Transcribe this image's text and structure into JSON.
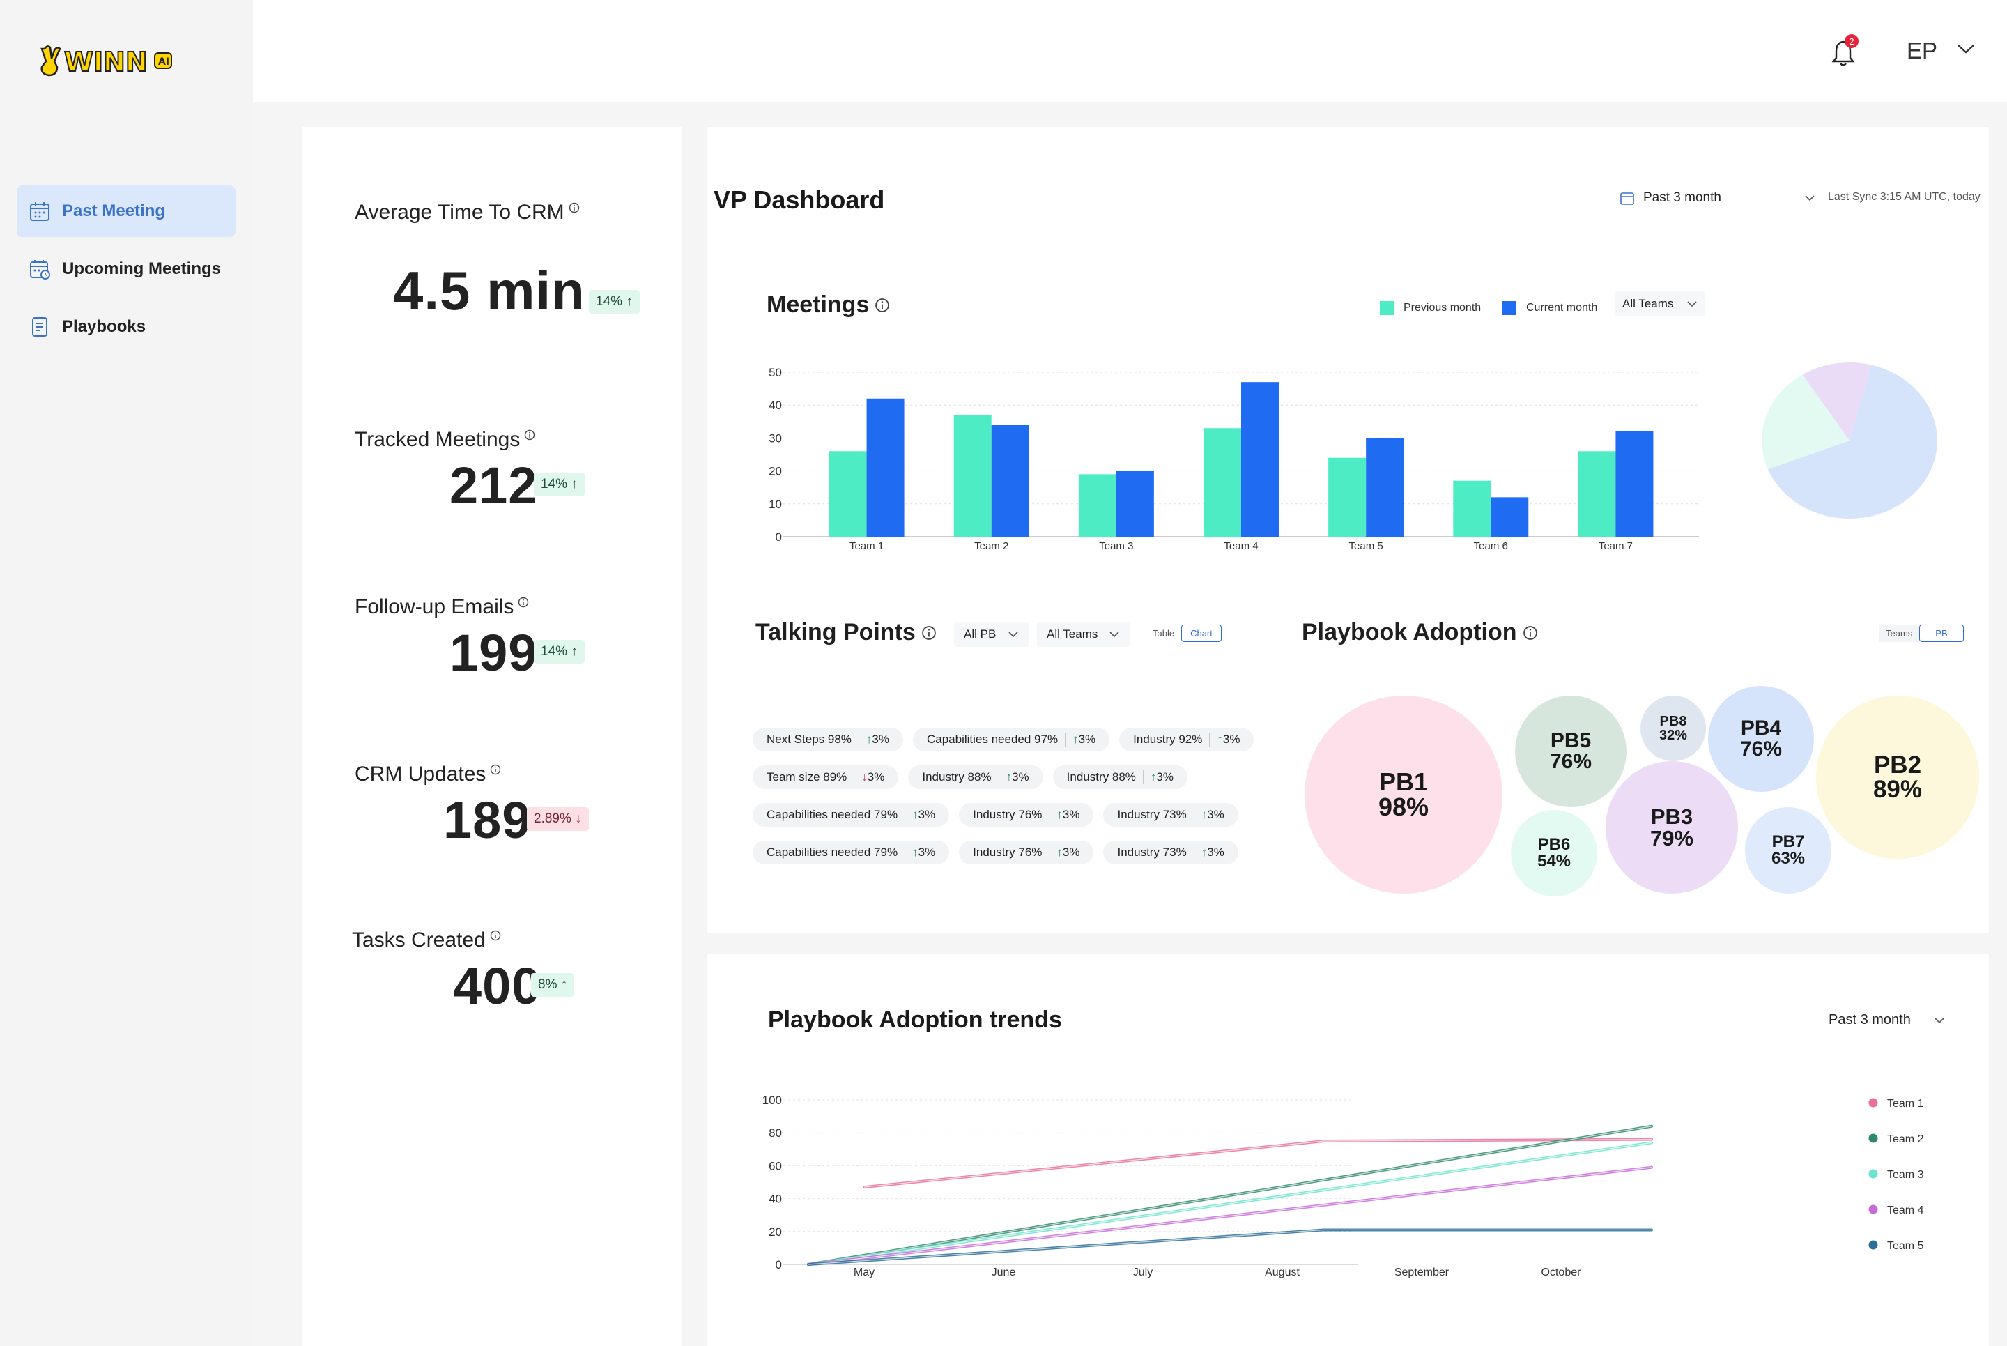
{
  "app": {
    "logo_text": "WINN",
    "logo_badge": "AI"
  },
  "sidebar": {
    "items": [
      {
        "label": "Past Meeting",
        "icon": "calendar-icon",
        "active": true
      },
      {
        "label": "Upcoming Meetings",
        "icon": "calendar-clock-icon",
        "active": false
      },
      {
        "label": "Playbooks",
        "icon": "document-icon",
        "active": false
      }
    ]
  },
  "header": {
    "notification_count": "2",
    "user_initials": "EP"
  },
  "stats": [
    {
      "label": "Average Time To CRM",
      "value": "4.5 min",
      "delta": "14%",
      "direction": "up"
    },
    {
      "label": "Tracked Meetings",
      "value": "212",
      "delta": "14%",
      "direction": "up"
    },
    {
      "label": "Follow-up Emails",
      "value": "199",
      "delta": "14%",
      "direction": "up"
    },
    {
      "label": "CRM Updates",
      "value": "189",
      "delta": "2.89%",
      "direction": "down"
    },
    {
      "label": "Tasks Created",
      "value": "400",
      "delta": "8%",
      "direction": "up"
    }
  ],
  "dashboard": {
    "title": "VP Dashboard",
    "period": "Past 3 month",
    "last_sync": "Last Sync 3:15 AM UTC, today"
  },
  "meetings": {
    "title": "Meetings",
    "team_filter": "All Teams",
    "colors": {
      "previous": "#4eecc5",
      "current": "#1f6bf2"
    },
    "chart_data": {
      "type": "bar",
      "categories": [
        "Team 1",
        "Team 2",
        "Team 3",
        "Team 4",
        "Team 5",
        "Team 6",
        "Team 7"
      ],
      "series": [
        {
          "name": "Previous month",
          "values": [
            26,
            37,
            19,
            33,
            24,
            17,
            26
          ]
        },
        {
          "name": "Current month",
          "values": [
            42,
            34,
            20,
            47,
            30,
            12,
            32
          ]
        }
      ],
      "yticks": [
        0,
        10,
        20,
        30,
        40,
        50
      ],
      "ylim": [
        0,
        50
      ]
    },
    "pie": {
      "chart_data": {
        "type": "pie",
        "values": [
          65,
          22,
          13
        ],
        "colors": [
          "#d6e4fb",
          "#e3faf2",
          "#eadcf7"
        ]
      }
    }
  },
  "talking_points": {
    "title": "Talking Points",
    "pb_filter": "All PB",
    "team_filter": "All Teams",
    "toggle": {
      "table": "Table",
      "chart": "Chart"
    },
    "rows": [
      [
        {
          "text": "Next Steps 98%",
          "delta": "3%",
          "direction": "up"
        },
        {
          "text": "Capabilities needed 97%",
          "delta": "3%",
          "direction": "up"
        },
        {
          "text": "Industry 92%",
          "delta": "3%",
          "direction": "up"
        }
      ],
      [
        {
          "text": "Team size 89%",
          "delta": "3%",
          "direction": "down"
        },
        {
          "text": "Industry 88%",
          "delta": "3%",
          "direction": "up"
        },
        {
          "text": "Industry 88%",
          "delta": "3%",
          "direction": "up"
        }
      ],
      [
        {
          "text": "Capabilities needed 79%",
          "delta": "3%",
          "direction": "up"
        },
        {
          "text": "Industry 76%",
          "delta": "3%",
          "direction": "up"
        },
        {
          "text": "Industry 73%",
          "delta": "3%",
          "direction": "up"
        }
      ],
      [
        {
          "text": "Capabilities needed 79%",
          "delta": "3%",
          "direction": "up"
        },
        {
          "text": "Industry 76%",
          "delta": "3%",
          "direction": "up"
        },
        {
          "text": "Industry 73%",
          "delta": "3%",
          "direction": "up"
        }
      ]
    ]
  },
  "playbook_adoption": {
    "title": "Playbook Adoption",
    "toggle": {
      "teams": "Teams",
      "pb": "PB"
    },
    "bubbles": [
      {
        "name": "PB1",
        "value": "98%",
        "color": "#fde0ea"
      },
      {
        "name": "PB5",
        "value": "76%",
        "color": "#d6e6dd"
      },
      {
        "name": "PB8",
        "value": "32%",
        "color": "#dfe6ef"
      },
      {
        "name": "PB4",
        "value": "76%",
        "color": "#d6e4fb"
      },
      {
        "name": "PB2",
        "value": "89%",
        "color": "#fdf7db"
      },
      {
        "name": "PB3",
        "value": "79%",
        "color": "#ecdcf6"
      },
      {
        "name": "PB6",
        "value": "54%",
        "color": "#e2faf1"
      },
      {
        "name": "PB7",
        "value": "63%",
        "color": "#dfebfc"
      }
    ]
  },
  "trends": {
    "title": "Playbook Adoption trends",
    "period": "Past 3 month",
    "chart_data": {
      "type": "line",
      "x": [
        "May",
        "June",
        "July",
        "August",
        "September",
        "October"
      ],
      "yticks": [
        0,
        20,
        40,
        60,
        80,
        100
      ],
      "ylim": [
        0,
        100
      ],
      "series": [
        {
          "name": "Team 1",
          "color": "#e5709c",
          "points": [
            [
              0,
              47
            ],
            [
              3.3,
              75
            ],
            [
              3.3,
              75
            ],
            [
              5.65,
              76
            ]
          ]
        },
        {
          "name": "Team 2",
          "color": "#2f8a6a",
          "points": [
            [
              -0.4,
              0
            ],
            [
              5.65,
              84
            ]
          ]
        },
        {
          "name": "Team 3",
          "color": "#6ee3cf",
          "points": [
            [
              -0.4,
              0
            ],
            [
              5.65,
              74
            ]
          ]
        },
        {
          "name": "Team 4",
          "color": "#c56bd6",
          "points": [
            [
              -0.4,
              0
            ],
            [
              5.65,
              59
            ]
          ]
        },
        {
          "name": "Team 5",
          "color": "#2c6e96",
          "points": [
            [
              -0.4,
              0
            ],
            [
              3.3,
              21
            ],
            [
              5.65,
              21
            ]
          ]
        }
      ]
    }
  }
}
